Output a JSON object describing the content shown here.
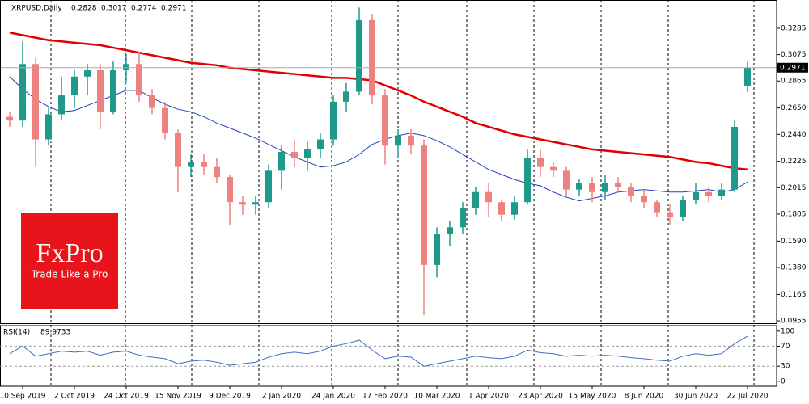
{
  "chart_data": [
    {
      "type": "candlestick",
      "title": "XRPUSD,Daily",
      "categories": [
        null,
        "10 Sep 2019",
        null,
        null,
        null,
        "2 Oct 2019",
        null,
        null,
        null,
        "24 Oct 2019",
        null,
        null,
        null,
        "15 Nov 2019",
        null,
        null,
        null,
        "9 Dec 2019",
        null,
        null,
        null,
        "2 Jan 2020",
        null,
        null,
        null,
        "24 Jan 2020",
        null,
        null,
        null,
        "17 Feb 2020",
        null,
        null,
        null,
        "10 Mar 2020",
        null,
        null,
        null,
        "1 Apr 2020",
        null,
        null,
        null,
        "23 Apr 2020",
        null,
        null,
        null,
        "15 May 2020",
        null,
        null,
        null,
        "8 Jun 2020",
        null,
        null,
        null,
        "30 Jun 2020",
        null,
        null,
        null,
        "22 Jul 2020"
      ],
      "open": [
        0.258,
        0.255,
        0.3,
        0.24,
        0.26,
        0.275,
        0.29,
        0.295,
        0.262,
        0.295,
        0.3,
        0.275,
        0.265,
        0.245,
        0.218,
        0.222,
        0.218,
        0.21,
        0.19,
        0.188,
        0.19,
        0.215,
        0.23,
        0.225,
        0.232,
        0.24,
        0.27,
        0.278,
        0.335,
        0.275,
        0.235,
        0.243,
        0.235,
        0.14,
        0.165,
        0.17,
        0.185,
        0.198,
        0.19,
        0.18,
        0.19,
        0.225,
        0.218,
        0.215,
        0.2,
        0.205,
        0.198,
        0.205,
        0.202,
        0.195,
        0.19,
        0.182,
        0.178,
        0.192,
        0.198,
        0.195,
        0.2,
        0.2828
      ],
      "high": [
        0.262,
        0.318,
        0.305,
        0.265,
        0.29,
        0.295,
        0.3,
        0.3,
        0.302,
        0.308,
        0.31,
        0.28,
        0.27,
        0.248,
        0.228,
        0.228,
        0.225,
        0.212,
        0.195,
        0.195,
        0.22,
        0.235,
        0.24,
        0.238,
        0.245,
        0.275,
        0.285,
        0.345,
        0.34,
        0.28,
        0.248,
        0.248,
        0.24,
        0.17,
        0.175,
        0.19,
        0.202,
        0.205,
        0.192,
        0.195,
        0.232,
        0.232,
        0.222,
        0.218,
        0.208,
        0.21,
        0.212,
        0.21,
        0.205,
        0.2,
        0.192,
        0.188,
        0.195,
        0.205,
        0.202,
        0.205,
        0.255,
        0.3017
      ],
      "low": [
        0.25,
        0.25,
        0.218,
        0.235,
        0.255,
        0.265,
        0.275,
        0.248,
        0.26,
        0.285,
        0.27,
        0.26,
        0.24,
        0.198,
        0.21,
        0.212,
        0.205,
        0.172,
        0.18,
        0.18,
        0.185,
        0.2,
        0.218,
        0.215,
        0.225,
        0.235,
        0.262,
        0.275,
        0.268,
        0.22,
        0.225,
        0.228,
        0.1,
        0.13,
        0.155,
        0.165,
        0.18,
        0.178,
        0.175,
        0.176,
        0.188,
        0.21,
        0.21,
        0.195,
        0.195,
        0.19,
        0.192,
        0.198,
        0.19,
        0.185,
        0.178,
        0.172,
        0.175,
        0.188,
        0.19,
        0.192,
        0.198,
        0.2774
      ],
      "close": [
        0.255,
        0.3,
        0.24,
        0.26,
        0.275,
        0.29,
        0.295,
        0.262,
        0.295,
        0.3,
        0.275,
        0.265,
        0.245,
        0.218,
        0.222,
        0.218,
        0.21,
        0.19,
        0.188,
        0.19,
        0.215,
        0.23,
        0.225,
        0.232,
        0.24,
        0.27,
        0.278,
        0.335,
        0.275,
        0.235,
        0.243,
        0.235,
        0.14,
        0.165,
        0.17,
        0.185,
        0.198,
        0.19,
        0.18,
        0.19,
        0.225,
        0.218,
        0.215,
        0.2,
        0.205,
        0.198,
        0.205,
        0.202,
        0.195,
        0.19,
        0.182,
        0.178,
        0.192,
        0.198,
        0.195,
        0.2,
        0.25,
        0.2971
      ],
      "up_color": "#1f9a8a",
      "down_color": "#ef8080",
      "lines": [
        {
          "color": "#e00000",
          "width": 2.5,
          "values": [
            0.325,
            0.323,
            0.321,
            0.319,
            0.318,
            0.317,
            0.316,
            0.315,
            0.313,
            0.311,
            0.309,
            0.307,
            0.305,
            0.303,
            0.301,
            0.3,
            0.299,
            0.297,
            0.296,
            0.295,
            0.294,
            0.293,
            0.292,
            0.291,
            0.29,
            0.289,
            0.289,
            0.288,
            0.287,
            0.283,
            0.279,
            0.275,
            0.27,
            0.266,
            0.262,
            0.258,
            0.253,
            0.25,
            0.247,
            0.244,
            0.242,
            0.24,
            0.238,
            0.236,
            0.234,
            0.232,
            0.231,
            0.23,
            0.229,
            0.228,
            0.227,
            0.226,
            0.224,
            0.222,
            0.221,
            0.219,
            0.217,
            0.216
          ]
        },
        {
          "color": "#2040c0",
          "width": 1,
          "values": [
            0.29,
            0.28,
            0.272,
            0.266,
            0.262,
            0.263,
            0.267,
            0.271,
            0.275,
            0.279,
            0.279,
            0.273,
            0.268,
            0.264,
            0.262,
            0.258,
            0.253,
            0.249,
            0.245,
            0.241,
            0.236,
            0.231,
            0.226,
            0.222,
            0.218,
            0.219,
            0.222,
            0.228,
            0.236,
            0.24,
            0.243,
            0.245,
            0.243,
            0.239,
            0.234,
            0.228,
            0.222,
            0.216,
            0.212,
            0.208,
            0.205,
            0.203,
            0.198,
            0.194,
            0.191,
            0.193,
            0.195,
            0.198,
            0.199,
            0.2,
            0.199,
            0.198,
            0.198,
            0.199,
            0.2,
            0.198,
            0.2,
            0.206
          ]
        }
      ],
      "ylim": [
        0.0936,
        0.351
      ],
      "yticks": [
        0.3285,
        0.3075,
        0.2865,
        {
          "value": 0.265,
          "label": "0.2650"
        },
        {
          "value": 0.244,
          "label": "0.2440"
        },
        0.2225,
        0.2015,
        0.1805,
        {
          "value": 0.159,
          "label": "0.1590"
        },
        {
          "value": 0.138,
          "label": "0.1380"
        },
        0.1165,
        0.0955
      ],
      "logo": {
        "brand": "FxPro",
        "tagline": "Trade Like a Pro",
        "color": "#e8131b"
      }
    },
    {
      "type": "line",
      "title": "RSI(14)",
      "color": "#3a6fc0",
      "values": [
        55,
        70,
        50,
        55,
        60,
        58,
        60,
        52,
        58,
        60,
        52,
        48,
        45,
        35,
        40,
        42,
        38,
        32,
        35,
        38,
        48,
        55,
        58,
        55,
        60,
        70,
        75,
        82,
        62,
        45,
        50,
        48,
        30,
        35,
        40,
        45,
        50,
        47,
        45,
        50,
        62,
        57,
        55,
        50,
        52,
        50,
        52,
        50,
        47,
        45,
        42,
        40,
        50,
        55,
        52,
        55,
        75,
        89.9733
      ],
      "ylim": [
        -10,
        111
      ],
      "yticks": [
        0,
        30,
        70,
        100
      ],
      "levels": [
        30,
        70
      ]
    }
  ]
}
